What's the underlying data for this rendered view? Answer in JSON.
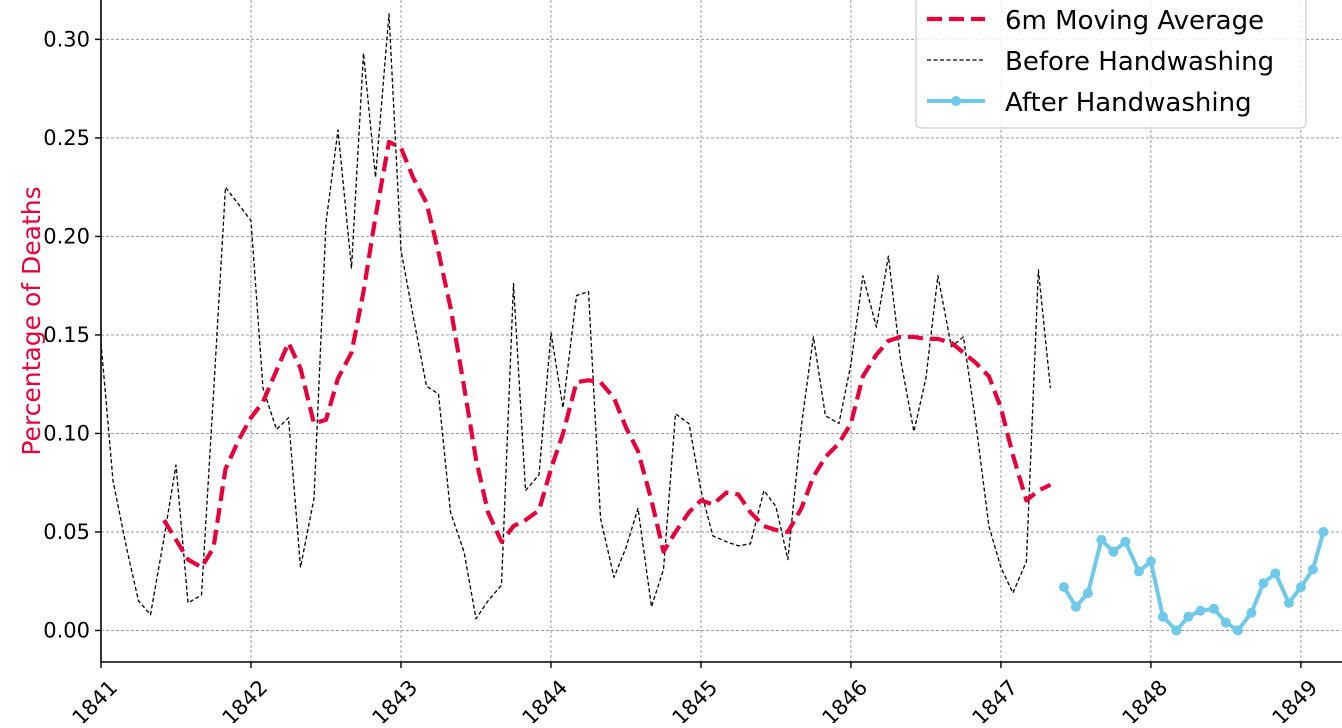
{
  "chart_data": {
    "type": "line",
    "title": "",
    "xlabel": "",
    "ylabel": "Percentage of Deaths",
    "ylabel_color": "#e8003a",
    "xlim": [
      1841.0,
      1849.15
    ],
    "ylim": [
      -0.016,
      0.32
    ],
    "grid": true,
    "legend_position": "top-right",
    "x_ticks": [
      {
        "value": 1841,
        "label": "1841"
      },
      {
        "value": 1842,
        "label": "1842"
      },
      {
        "value": 1843,
        "label": "1843"
      },
      {
        "value": 1844,
        "label": "1844"
      },
      {
        "value": 1845,
        "label": "1845"
      },
      {
        "value": 1846,
        "label": "1846"
      },
      {
        "value": 1847,
        "label": "1847"
      },
      {
        "value": 1848,
        "label": "1848"
      },
      {
        "value": 1849,
        "label": "1849"
      }
    ],
    "y_ticks": [
      {
        "value": 0.0,
        "label": "0.00"
      },
      {
        "value": 0.05,
        "label": "0.05"
      },
      {
        "value": 0.1,
        "label": "0.10"
      },
      {
        "value": 0.15,
        "label": "0.15"
      },
      {
        "value": 0.2,
        "label": "0.20"
      },
      {
        "value": 0.25,
        "label": "0.25"
      },
      {
        "value": 0.3,
        "label": "0.30"
      }
    ],
    "series": [
      {
        "name": "6m Moving Average",
        "color": "#e8003a",
        "style": "dashed-thick",
        "x": [
          1841.42,
          1841.5,
          1841.58,
          1841.67,
          1841.75,
          1841.83,
          1841.92,
          1842.0,
          1842.08,
          1842.17,
          1842.25,
          1842.33,
          1842.42,
          1842.5,
          1842.58,
          1842.67,
          1842.75,
          1842.83,
          1842.92,
          1843.0,
          1843.08,
          1843.17,
          1843.25,
          1843.33,
          1843.42,
          1843.5,
          1843.58,
          1843.67,
          1843.75,
          1843.83,
          1843.92,
          1844.0,
          1844.08,
          1844.17,
          1844.25,
          1844.33,
          1844.42,
          1844.5,
          1844.58,
          1844.67,
          1844.75,
          1844.83,
          1844.92,
          1845.0,
          1845.08,
          1845.17,
          1845.25,
          1845.33,
          1845.42,
          1845.5,
          1845.58,
          1845.67,
          1845.75,
          1845.83,
          1845.92,
          1846.0,
          1846.08,
          1846.17,
          1846.25,
          1846.33,
          1846.42,
          1846.5,
          1846.58,
          1846.67,
          1846.75,
          1846.83,
          1846.92,
          1847.0,
          1847.08,
          1847.17,
          1847.25,
          1847.33
        ],
        "values": [
          0.056,
          0.046,
          0.036,
          0.032,
          0.042,
          0.082,
          0.097,
          0.108,
          0.116,
          0.132,
          0.146,
          0.133,
          0.105,
          0.107,
          0.128,
          0.141,
          0.172,
          0.21,
          0.248,
          0.245,
          0.23,
          0.217,
          0.192,
          0.164,
          0.124,
          0.087,
          0.06,
          0.045,
          0.053,
          0.056,
          0.061,
          0.082,
          0.1,
          0.126,
          0.127,
          0.126,
          0.118,
          0.103,
          0.091,
          0.066,
          0.04,
          0.05,
          0.06,
          0.066,
          0.064,
          0.07,
          0.069,
          0.06,
          0.053,
          0.051,
          0.05,
          0.062,
          0.078,
          0.088,
          0.095,
          0.105,
          0.129,
          0.14,
          0.147,
          0.149,
          0.149,
          0.148,
          0.148,
          0.146,
          0.141,
          0.136,
          0.129,
          0.113,
          0.089,
          0.066,
          0.071,
          0.074
        ]
      },
      {
        "name": "Before Handwashing",
        "color": "#000000",
        "style": "dashed-thin",
        "x": [
          1841.0,
          1841.08,
          1841.17,
          1841.25,
          1841.33,
          1841.42,
          1841.5,
          1841.58,
          1841.67,
          1841.75,
          1841.83,
          1841.92,
          1842.0,
          1842.08,
          1842.17,
          1842.25,
          1842.33,
          1842.42,
          1842.5,
          1842.58,
          1842.67,
          1842.75,
          1842.83,
          1842.92,
          1843.0,
          1843.08,
          1843.17,
          1843.25,
          1843.33,
          1843.42,
          1843.5,
          1843.58,
          1843.67,
          1843.75,
          1843.83,
          1843.92,
          1844.0,
          1844.08,
          1844.17,
          1844.25,
          1844.33,
          1844.42,
          1844.5,
          1844.58,
          1844.67,
          1844.75,
          1844.83,
          1844.92,
          1845.0,
          1845.08,
          1845.17,
          1845.25,
          1845.33,
          1845.42,
          1845.5,
          1845.58,
          1845.67,
          1845.75,
          1845.83,
          1845.92,
          1846.0,
          1846.08,
          1846.17,
          1846.25,
          1846.33,
          1846.42,
          1846.5,
          1846.58,
          1846.67,
          1846.75,
          1846.83,
          1846.92,
          1847.0,
          1847.08,
          1847.17,
          1847.25,
          1847.33
        ],
        "values": [
          0.146,
          0.076,
          0.042,
          0.015,
          0.008,
          0.047,
          0.084,
          0.014,
          0.018,
          0.12,
          0.225,
          0.216,
          0.208,
          0.123,
          0.102,
          0.108,
          0.032,
          0.067,
          0.207,
          0.254,
          0.184,
          0.293,
          0.23,
          0.313,
          0.193,
          0.16,
          0.124,
          0.12,
          0.06,
          0.04,
          0.006,
          0.015,
          0.023,
          0.176,
          0.071,
          0.079,
          0.151,
          0.113,
          0.17,
          0.172,
          0.057,
          0.027,
          0.042,
          0.062,
          0.012,
          0.031,
          0.11,
          0.105,
          0.071,
          0.048,
          0.045,
          0.043,
          0.044,
          0.071,
          0.063,
          0.036,
          0.104,
          0.149,
          0.109,
          0.105,
          0.135,
          0.18,
          0.154,
          0.19,
          0.138,
          0.101,
          0.128,
          0.18,
          0.144,
          0.149,
          0.107,
          0.053,
          0.032,
          0.019,
          0.035,
          0.183,
          0.123
        ]
      },
      {
        "name": "After Handwashing",
        "color": "#6ec9ea",
        "style": "solid-markers",
        "x": [
          1847.42,
          1847.5,
          1847.58,
          1847.67,
          1847.75,
          1847.83,
          1847.92,
          1848.0,
          1848.08,
          1848.17,
          1848.25,
          1848.33,
          1848.42,
          1848.5,
          1848.58,
          1848.67,
          1848.75,
          1848.83,
          1848.92,
          1849.0,
          1849.08,
          1849.15
        ],
        "values": [
          0.022,
          0.012,
          0.019,
          0.046,
          0.04,
          0.045,
          0.03,
          0.035,
          0.007,
          0.0,
          0.007,
          0.01,
          0.011,
          0.004,
          0.0,
          0.009,
          0.024,
          0.029,
          0.014,
          0.022,
          0.031,
          0.05
        ]
      }
    ]
  }
}
